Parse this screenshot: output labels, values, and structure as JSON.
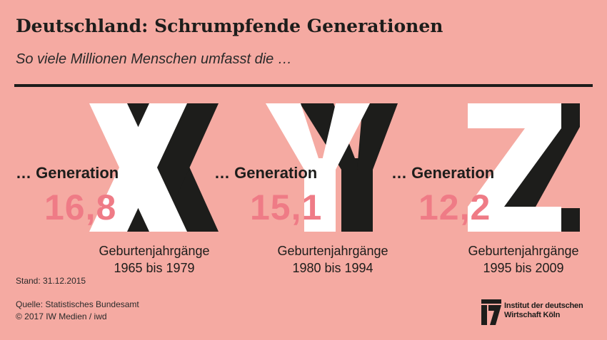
{
  "header": {
    "title": "Deutschland: Schrumpfende Generationen",
    "subtitle": "So viele Millionen Menschen umfasst die …"
  },
  "chart_data": {
    "type": "table",
    "title": "Deutschland: Schrumpfende Generationen",
    "subtitle": "So viele Millionen Menschen umfasst die …",
    "unit": "Millionen Menschen",
    "categories": [
      "Generation X",
      "Generation Y",
      "Generation Z"
    ],
    "values": [
      16.8,
      15.1,
      12.2
    ],
    "items": [
      {
        "letter": "X",
        "label": "… Generation",
        "value_text": "16,8",
        "value": 16.8,
        "years_line1": "Geburtenjahrgänge",
        "years_line2": "1965 bis 1979"
      },
      {
        "letter": "Y",
        "label": "… Generation",
        "value_text": "15,1",
        "value": 15.1,
        "years_line1": "Geburtenjahrgänge",
        "years_line2": "1980 bis 1994"
      },
      {
        "letter": "Z",
        "label": "… Generation",
        "value_text": "12,2",
        "value": 12.2,
        "years_line1": "Geburtenjahrgänge",
        "years_line2": "1995 bis 2009"
      }
    ]
  },
  "footer": {
    "stand": "Stand: 31.12.2015",
    "source": "Quelle: Statistisches Bundesamt",
    "copyright": "© 2017 IW Medien / iwd",
    "logo_line1": "Institut der deutschen",
    "logo_line2": "Wirtschaft Köln"
  },
  "colors": {
    "background": "#f5aaa2",
    "letter_light": "#ffffff",
    "letter_dark": "#1d1d1b",
    "value": "#ef7b86",
    "text": "#1d1d1b"
  }
}
